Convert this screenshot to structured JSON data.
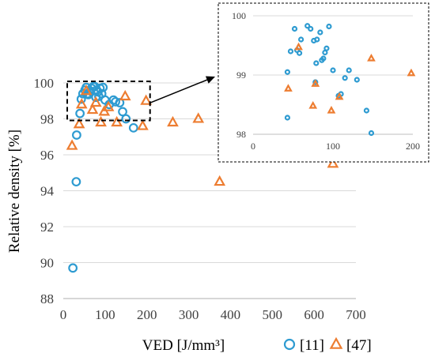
{
  "chart_data": {
    "type": "scatter",
    "xlabel": "VED [J/mm³]",
    "ylabel": "Relative density [%]",
    "xlim": [
      0,
      700
    ],
    "ylim": [
      88,
      100
    ],
    "xticks": [
      0,
      100,
      200,
      300,
      400,
      500,
      600,
      700
    ],
    "yticks": [
      88,
      90,
      92,
      94,
      96,
      98,
      100
    ],
    "legend_position": "bottom-right",
    "series": [
      {
        "name": "[11]",
        "marker": "circle",
        "color": "#2e9bd1",
        "points": [
          [
            23,
            89.7
          ],
          [
            31,
            94.5
          ],
          [
            32,
            97.1
          ],
          [
            40,
            98.3
          ],
          [
            43,
            99.1
          ],
          [
            47,
            99.4
          ],
          [
            52,
            99.6
          ],
          [
            55,
            99.75
          ],
          [
            58,
            99.4
          ],
          [
            60,
            99.35
          ],
          [
            65,
            99.55
          ],
          [
            68,
            99.7
          ],
          [
            72,
            99.8
          ],
          [
            75,
            99.8
          ],
          [
            78,
            99.2
          ],
          [
            80,
            99.6
          ],
          [
            83,
            99.5
          ],
          [
            85,
            99.25
          ],
          [
            88,
            99.7
          ],
          [
            92,
            99.4
          ],
          [
            95,
            99.75
          ],
          [
            100,
            99.05
          ],
          [
            110,
            98.8
          ],
          [
            120,
            99.05
          ],
          [
            125,
            98.95
          ],
          [
            135,
            98.9
          ],
          [
            142,
            98.4
          ],
          [
            150,
            98.0
          ],
          [
            168,
            97.5
          ]
        ]
      },
      {
        "name": "[47]",
        "marker": "triangle",
        "color": "#ed7d31",
        "points": [
          [
            21,
            96.5
          ],
          [
            38,
            97.7
          ],
          [
            44,
            98.8
          ],
          [
            55,
            99.55
          ],
          [
            70,
            98.5
          ],
          [
            78,
            98.9
          ],
          [
            90,
            97.8
          ],
          [
            98,
            98.4
          ],
          [
            108,
            98.65
          ],
          [
            128,
            97.8
          ],
          [
            148,
            99.25
          ],
          [
            190,
            97.6
          ],
          [
            198,
            99.0
          ],
          [
            262,
            97.8
          ],
          [
            323,
            98.0
          ],
          [
            374,
            94.5
          ],
          [
            645,
            95.5
          ]
        ]
      }
    ],
    "inset": {
      "xlim": [
        0,
        200
      ],
      "ylim": [
        98,
        100
      ],
      "xticks": [
        0,
        100,
        200
      ],
      "yticks": [
        98,
        99,
        100
      ],
      "series": [
        {
          "name": "[11]",
          "points": [
            [
              43,
              98.28
            ],
            [
              43,
              99.05
            ],
            [
              47,
              99.4
            ],
            [
              52,
              99.78
            ],
            [
              55,
              99.42
            ],
            [
              58,
              99.37
            ],
            [
              60,
              99.6
            ],
            [
              68,
              99.83
            ],
            [
              72,
              99.78
            ],
            [
              76,
              99.58
            ],
            [
              78,
              98.88
            ],
            [
              79,
              99.2
            ],
            [
              80,
              99.6
            ],
            [
              84,
              99.72
            ],
            [
              86,
              99.25
            ],
            [
              88,
              99.28
            ],
            [
              90,
              99.38
            ],
            [
              92,
              99.45
            ],
            [
              95,
              99.82
            ],
            [
              100,
              99.08
            ],
            [
              107,
              98.65
            ],
            [
              110,
              98.68
            ],
            [
              115,
              98.95
            ],
            [
              120,
              99.08
            ],
            [
              130,
              98.92
            ],
            [
              142,
              98.4
            ],
            [
              148,
              98.02
            ]
          ]
        },
        {
          "name": "[47]",
          "points": [
            [
              44,
              98.77
            ],
            [
              57,
              99.47
            ],
            [
              75,
              98.48
            ],
            [
              78,
              98.85
            ],
            [
              98,
              98.4
            ],
            [
              108,
              98.63
            ],
            [
              148,
              99.28
            ],
            [
              198,
              99.03
            ]
          ]
        }
      ]
    }
  }
}
